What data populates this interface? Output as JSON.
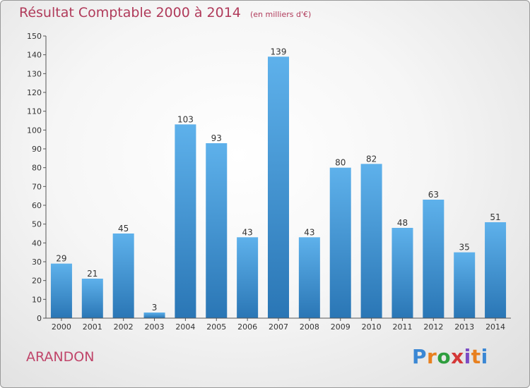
{
  "header": {
    "title": "Résultat Comptable 2000 à 2014",
    "subtitle": "(en milliers d'€)"
  },
  "footer": {
    "place": "ARANDON",
    "logo": [
      "P",
      "r",
      "o",
      "x",
      "i",
      "t",
      "i"
    ]
  },
  "colors": {
    "title": "#b03a5a",
    "bar_top": "#5eb1eb",
    "bar_bottom": "#2a76b5",
    "logo": [
      "#3a87d4",
      "#e8801f",
      "#2e9e3e",
      "#d43838",
      "#7b4bc4",
      "#e8801f",
      "#3a87d4"
    ]
  },
  "chart_data": {
    "type": "bar",
    "title": "Résultat Comptable 2000 à 2014",
    "xlabel": "",
    "ylabel": "",
    "ylim": [
      0,
      150
    ],
    "yticks": [
      0,
      10,
      20,
      30,
      40,
      50,
      60,
      70,
      80,
      90,
      100,
      110,
      120,
      130,
      140,
      150
    ],
    "grid": false,
    "categories": [
      "2000",
      "2001",
      "2002",
      "2003",
      "2004",
      "2005",
      "2006",
      "2007",
      "2008",
      "2009",
      "2010",
      "2011",
      "2012",
      "2013",
      "2014"
    ],
    "values": [
      29,
      21,
      45,
      3,
      103,
      93,
      43,
      139,
      43,
      80,
      82,
      48,
      63,
      35,
      51
    ]
  }
}
